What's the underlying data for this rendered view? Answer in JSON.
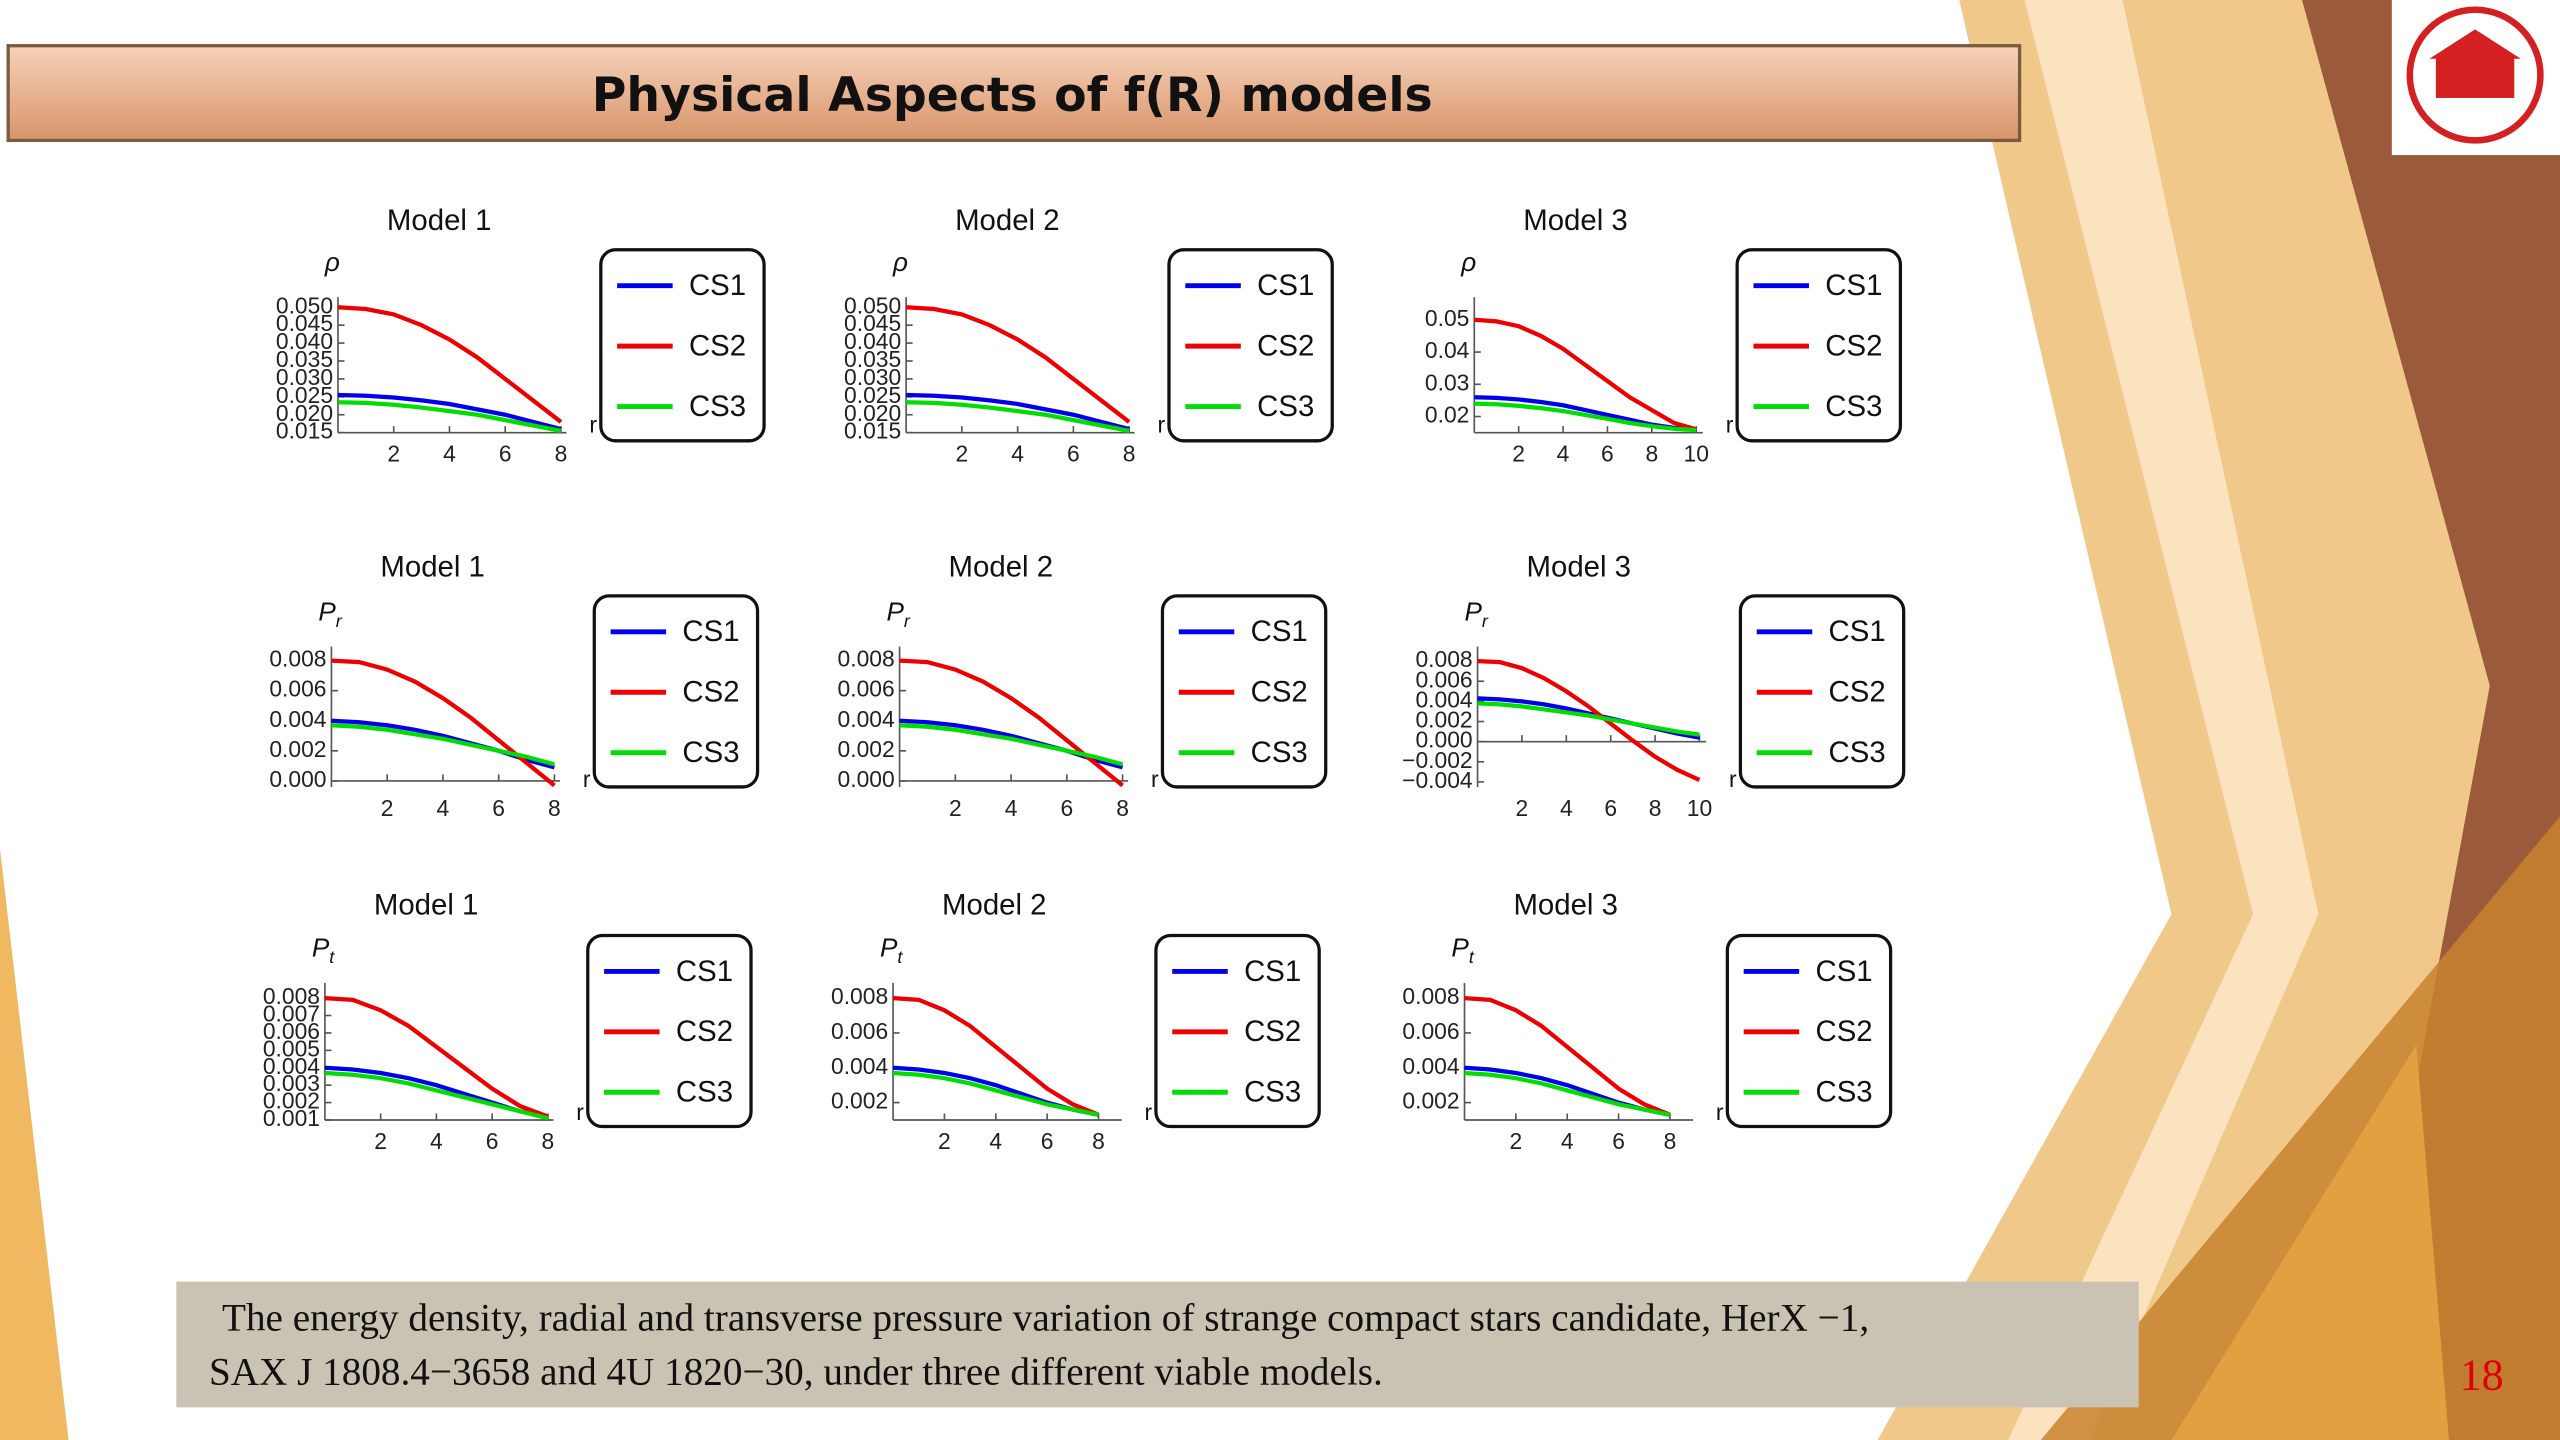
{
  "slide": {
    "title": "Physical Aspects of f(R) models",
    "caption": [
      "The  energy density, radial and transverse pressure  variation of strange compact stars candidate, HerX −1,",
      "SAX J 1808.4−3658 and 4U 1820−30, under three different viable  models."
    ],
    "page_number": "18"
  },
  "chart_data": [
    {
      "type": "line",
      "title": "Model 1",
      "ylabel": "ρ",
      "xlabel": "r",
      "x": [
        0,
        1,
        2,
        3,
        4,
        5,
        6,
        7,
        8
      ],
      "xlim": [
        0,
        8.2
      ],
      "xticks": [
        2,
        4,
        6,
        8
      ],
      "ylim": [
        0.015,
        0.051
      ],
      "yticks": [
        0.015,
        {
          "value": 0.02,
          "label": "0.020"
        },
        0.025,
        {
          "value": 0.03,
          "label": "0.030"
        },
        0.035,
        {
          "value": 0.04,
          "label": "0.040"
        },
        0.045,
        {
          "value": 0.05,
          "label": "0.050"
        }
      ],
      "series": [
        {
          "name": "CS1",
          "color": "#0000ee",
          "values": [
            0.0255,
            0.0253,
            0.0248,
            0.024,
            0.023,
            0.0215,
            0.02,
            0.018,
            0.016
          ]
        },
        {
          "name": "CS2",
          "color": "#ee0000",
          "values": [
            0.05,
            0.0495,
            0.048,
            0.045,
            0.041,
            0.036,
            0.03,
            0.024,
            0.018
          ]
        },
        {
          "name": "CS3",
          "color": "#00dd00",
          "values": [
            0.0235,
            0.0233,
            0.0228,
            0.022,
            0.021,
            0.02,
            0.0185,
            0.017,
            0.0155
          ]
        }
      ]
    },
    {
      "type": "line",
      "title": "Model 2",
      "ylabel": "ρ",
      "xlabel": "r",
      "x": [
        0,
        1,
        2,
        3,
        4,
        5,
        6,
        7,
        8
      ],
      "xlim": [
        0,
        8.2
      ],
      "xticks": [
        2,
        4,
        6,
        8
      ],
      "ylim": [
        0.015,
        0.051
      ],
      "yticks": [
        0.015,
        {
          "value": 0.02,
          "label": "0.020"
        },
        0.025,
        {
          "value": 0.03,
          "label": "0.030"
        },
        0.035,
        {
          "value": 0.04,
          "label": "0.040"
        },
        0.045,
        {
          "value": 0.05,
          "label": "0.050"
        }
      ],
      "series": [
        {
          "name": "CS1",
          "color": "#0000ee",
          "values": [
            0.0255,
            0.0253,
            0.0248,
            0.024,
            0.023,
            0.0215,
            0.02,
            0.018,
            0.016
          ]
        },
        {
          "name": "CS2",
          "color": "#ee0000",
          "values": [
            0.05,
            0.0495,
            0.048,
            0.045,
            0.041,
            0.036,
            0.03,
            0.024,
            0.018
          ]
        },
        {
          "name": "CS3",
          "color": "#00dd00",
          "values": [
            0.0235,
            0.0233,
            0.0228,
            0.022,
            0.021,
            0.02,
            0.0185,
            0.017,
            0.0155
          ]
        }
      ]
    },
    {
      "type": "line",
      "title": "Model 3",
      "ylabel": "ρ",
      "xlabel": "r",
      "x": [
        0,
        1,
        2,
        3,
        4,
        5,
        6,
        7,
        8,
        9,
        10
      ],
      "xlim": [
        0,
        10.3
      ],
      "xticks": [
        2,
        4,
        6,
        8,
        10
      ],
      "ylim": [
        0.015,
        0.055
      ],
      "yticks": [
        0.02,
        0.03,
        0.04,
        0.05
      ],
      "series": [
        {
          "name": "CS1",
          "color": "#0000ee",
          "values": [
            0.026,
            0.0258,
            0.0253,
            0.0245,
            0.0235,
            0.022,
            0.0205,
            0.019,
            0.0175,
            0.0165,
            0.016
          ]
        },
        {
          "name": "CS2",
          "color": "#ee0000",
          "values": [
            0.05,
            0.0495,
            0.048,
            0.045,
            0.041,
            0.036,
            0.031,
            0.026,
            0.022,
            0.018,
            0.016
          ]
        },
        {
          "name": "CS3",
          "color": "#00dd00",
          "values": [
            0.024,
            0.0238,
            0.0233,
            0.0226,
            0.0217,
            0.0205,
            0.0193,
            0.018,
            0.017,
            0.0162,
            0.0158
          ]
        }
      ]
    },
    {
      "type": "line",
      "title": "Model 1",
      "ylabel": "P",
      "ylabel_sub": "r",
      "xlabel": "r",
      "x": [
        0,
        1,
        2,
        3,
        4,
        5,
        6,
        7,
        8
      ],
      "xlim": [
        0,
        8.2
      ],
      "xticks": [
        2,
        4,
        6,
        8
      ],
      "ylim": [
        -0.0004,
        0.0085
      ],
      "yticks": [
        {
          "value": 0,
          "label": "0.000"
        },
        {
          "value": 0.002,
          "label": "0.002"
        },
        {
          "value": 0.004,
          "label": "0.004"
        },
        {
          "value": 0.006,
          "label": "0.006"
        },
        {
          "value": 0.008,
          "label": "0.008"
        }
      ],
      "series": [
        {
          "name": "CS1",
          "color": "#0000ee",
          "values": [
            0.004,
            0.0039,
            0.0037,
            0.0034,
            0.003,
            0.0025,
            0.002,
            0.0014,
            0.0009
          ]
        },
        {
          "name": "CS2",
          "color": "#ee0000",
          "values": [
            0.008,
            0.0079,
            0.0074,
            0.0066,
            0.0055,
            0.0042,
            0.0027,
            0.0012,
            -0.0003
          ]
        },
        {
          "name": "CS3",
          "color": "#00dd00",
          "values": [
            0.0037,
            0.0036,
            0.0034,
            0.0031,
            0.0028,
            0.0024,
            0.002,
            0.0016,
            0.0011
          ]
        }
      ]
    },
    {
      "type": "line",
      "title": "Model 2",
      "ylabel": "P",
      "ylabel_sub": "r",
      "xlabel": "r",
      "x": [
        0,
        1,
        2,
        3,
        4,
        5,
        6,
        7,
        8
      ],
      "xlim": [
        0,
        8.2
      ],
      "xticks": [
        2,
        4,
        6,
        8
      ],
      "ylim": [
        -0.0004,
        0.0085
      ],
      "yticks": [
        {
          "value": 0,
          "label": "0.000"
        },
        {
          "value": 0.002,
          "label": "0.002"
        },
        {
          "value": 0.004,
          "label": "0.004"
        },
        {
          "value": 0.006,
          "label": "0.006"
        },
        {
          "value": 0.008,
          "label": "0.008"
        }
      ],
      "series": [
        {
          "name": "CS1",
          "color": "#0000ee",
          "values": [
            0.004,
            0.0039,
            0.0037,
            0.0034,
            0.003,
            0.0025,
            0.002,
            0.0014,
            0.0009
          ]
        },
        {
          "name": "CS2",
          "color": "#ee0000",
          "values": [
            0.008,
            0.0079,
            0.0074,
            0.0066,
            0.0055,
            0.0042,
            0.0027,
            0.0012,
            -0.0003
          ]
        },
        {
          "name": "CS3",
          "color": "#00dd00",
          "values": [
            0.0037,
            0.0036,
            0.0034,
            0.0031,
            0.0028,
            0.0024,
            0.002,
            0.0016,
            0.0011
          ]
        }
      ]
    },
    {
      "type": "line",
      "title": "Model 3",
      "ylabel": "P",
      "ylabel_sub": "r",
      "xlabel": "r",
      "x": [
        0,
        1,
        2,
        3,
        4,
        5,
        6,
        7,
        8,
        9,
        10
      ],
      "xlim": [
        0,
        10.3
      ],
      "xticks": [
        2,
        4,
        6,
        8,
        10
      ],
      "ylim": [
        -0.0045,
        0.0088
      ],
      "yticks": [
        {
          "value": -0.004,
          "label": "−0.004"
        },
        {
          "value": -0.002,
          "label": "−0.002"
        },
        {
          "value": 0,
          "label": "0.000"
        },
        {
          "value": 0.002,
          "label": "0.002"
        },
        {
          "value": 0.004,
          "label": "0.004"
        },
        {
          "value": 0.006,
          "label": "0.006"
        },
        {
          "value": 0.008,
          "label": "0.008"
        }
      ],
      "series": [
        {
          "name": "CS1",
          "color": "#0000ee",
          "values": [
            0.0043,
            0.0042,
            0.004,
            0.0037,
            0.0033,
            0.0028,
            0.0023,
            0.0018,
            0.0013,
            0.0008,
            0.0004
          ]
        },
        {
          "name": "CS2",
          "color": "#ee0000",
          "values": [
            0.008,
            0.0079,
            0.0073,
            0.0063,
            0.005,
            0.0035,
            0.0018,
            0.0001,
            -0.0015,
            -0.0028,
            -0.0038
          ]
        },
        {
          "name": "CS3",
          "color": "#00dd00",
          "values": [
            0.0038,
            0.0037,
            0.0035,
            0.0032,
            0.0029,
            0.0026,
            0.0022,
            0.0018,
            0.0014,
            0.001,
            0.0007
          ]
        }
      ]
    },
    {
      "type": "line",
      "title": "Model 1",
      "ylabel": "P",
      "ylabel_sub": "t",
      "xlabel": "r",
      "x": [
        0,
        1,
        2,
        3,
        4,
        5,
        6,
        7,
        8
      ],
      "xlim": [
        0,
        8.2
      ],
      "xticks": [
        2,
        4,
        6,
        8
      ],
      "ylim": [
        0.001,
        0.0085
      ],
      "yticks": [
        0.001,
        0.002,
        0.003,
        0.004,
        0.005,
        0.006,
        0.007,
        0.008
      ],
      "series": [
        {
          "name": "CS1",
          "color": "#0000ee",
          "values": [
            0.004,
            0.0039,
            0.0037,
            0.0034,
            0.003,
            0.0025,
            0.002,
            0.0015,
            0.0012
          ]
        },
        {
          "name": "CS2",
          "color": "#ee0000",
          "values": [
            0.008,
            0.0079,
            0.0073,
            0.0064,
            0.0052,
            0.004,
            0.0028,
            0.0018,
            0.0012
          ]
        },
        {
          "name": "CS3",
          "color": "#00dd00",
          "values": [
            0.0037,
            0.0036,
            0.0034,
            0.0031,
            0.0027,
            0.0023,
            0.0019,
            0.0015,
            0.0011
          ]
        }
      ]
    },
    {
      "type": "line",
      "title": "Model 2",
      "ylabel": "P",
      "ylabel_sub": "t",
      "xlabel": "r",
      "x": [
        0,
        1,
        2,
        3,
        4,
        5,
        6,
        7,
        8
      ],
      "xlim": [
        0,
        8.9
      ],
      "xticks": [
        2,
        4,
        6,
        8
      ],
      "ylim": [
        0.001,
        0.0085
      ],
      "yticks": [
        0.002,
        0.004,
        0.006,
        0.008
      ],
      "series": [
        {
          "name": "CS1",
          "color": "#0000ee",
          "values": [
            0.004,
            0.0039,
            0.0037,
            0.0034,
            0.003,
            0.0025,
            0.002,
            0.0016,
            0.0013
          ]
        },
        {
          "name": "CS2",
          "color": "#ee0000",
          "values": [
            0.008,
            0.0079,
            0.0073,
            0.0064,
            0.0052,
            0.004,
            0.0028,
            0.0019,
            0.0013
          ]
        },
        {
          "name": "CS3",
          "color": "#00dd00",
          "values": [
            0.0037,
            0.0036,
            0.0034,
            0.0031,
            0.0027,
            0.0023,
            0.0019,
            0.0016,
            0.0013
          ]
        }
      ]
    },
    {
      "type": "line",
      "title": "Model 3",
      "ylabel": "P",
      "ylabel_sub": "t",
      "xlabel": "r",
      "x": [
        0,
        1,
        2,
        3,
        4,
        5,
        6,
        7,
        8
      ],
      "xlim": [
        0,
        8.9
      ],
      "xticks": [
        2,
        4,
        6,
        8
      ],
      "ylim": [
        0.001,
        0.0085
      ],
      "yticks": [
        0.002,
        0.004,
        0.006,
        0.008
      ],
      "series": [
        {
          "name": "CS1",
          "color": "#0000ee",
          "values": [
            0.004,
            0.0039,
            0.0037,
            0.0034,
            0.003,
            0.0025,
            0.002,
            0.0016,
            0.0013
          ]
        },
        {
          "name": "CS2",
          "color": "#ee0000",
          "values": [
            0.008,
            0.0079,
            0.0073,
            0.0064,
            0.0052,
            0.004,
            0.0028,
            0.0019,
            0.0013
          ]
        },
        {
          "name": "CS3",
          "color": "#00dd00",
          "values": [
            0.0037,
            0.0036,
            0.0034,
            0.0031,
            0.0027,
            0.0023,
            0.0019,
            0.0016,
            0.0013
          ]
        }
      ]
    }
  ]
}
